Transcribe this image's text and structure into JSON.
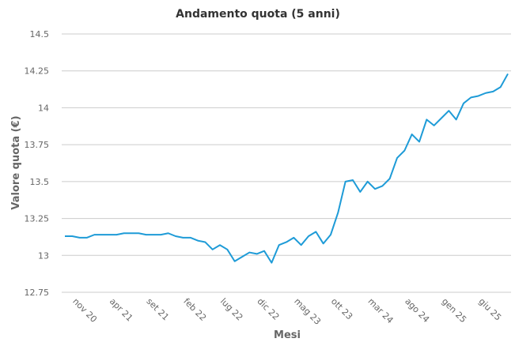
{
  "chart_data": {
    "type": "line",
    "title": "Andamento quota (5 anni)",
    "x_label": "Mesi",
    "y_label": "Valore quota (€)",
    "categories": [
      null,
      "nov 20",
      null,
      null,
      null,
      null,
      "apr 21",
      null,
      null,
      null,
      null,
      "set 21",
      null,
      null,
      null,
      null,
      "feb 22",
      null,
      null,
      null,
      null,
      "lug 22",
      null,
      null,
      null,
      null,
      "dic 22",
      null,
      null,
      null,
      null,
      "mag 23",
      null,
      null,
      null,
      null,
      "ott 23",
      null,
      null,
      null,
      null,
      "mar 24",
      null,
      null,
      null,
      null,
      "ago 24",
      null,
      null,
      null,
      null,
      "gen 25",
      null,
      null,
      null,
      null,
      "giu 25",
      null,
      null,
      null,
      null
    ],
    "series": [
      {
        "name": "Valore quota",
        "color": "#1e9bd7",
        "values": [
          13.13,
          13.13,
          13.12,
          13.12,
          13.14,
          13.14,
          13.14,
          13.14,
          13.15,
          13.15,
          13.15,
          13.14,
          13.14,
          13.14,
          13.15,
          13.13,
          13.12,
          13.12,
          13.1,
          13.09,
          13.04,
          13.07,
          13.04,
          12.96,
          12.99,
          13.02,
          13.01,
          13.03,
          12.95,
          13.07,
          13.09,
          13.12,
          13.07,
          13.13,
          13.16,
          13.08,
          13.14,
          13.29,
          13.5,
          13.51,
          13.43,
          13.5,
          13.45,
          13.47,
          13.52,
          13.66,
          13.71,
          13.82,
          13.77,
          13.92,
          13.88,
          13.93,
          13.98,
          13.92,
          14.03,
          14.07,
          14.08,
          14.1,
          14.11,
          14.14,
          14.23
        ]
      }
    ],
    "ylim": [
      12.75,
      14.5
    ],
    "yticks": [
      12.75,
      13,
      13.25,
      13.5,
      13.75,
      14,
      14.25,
      14.5
    ],
    "grid": true
  }
}
